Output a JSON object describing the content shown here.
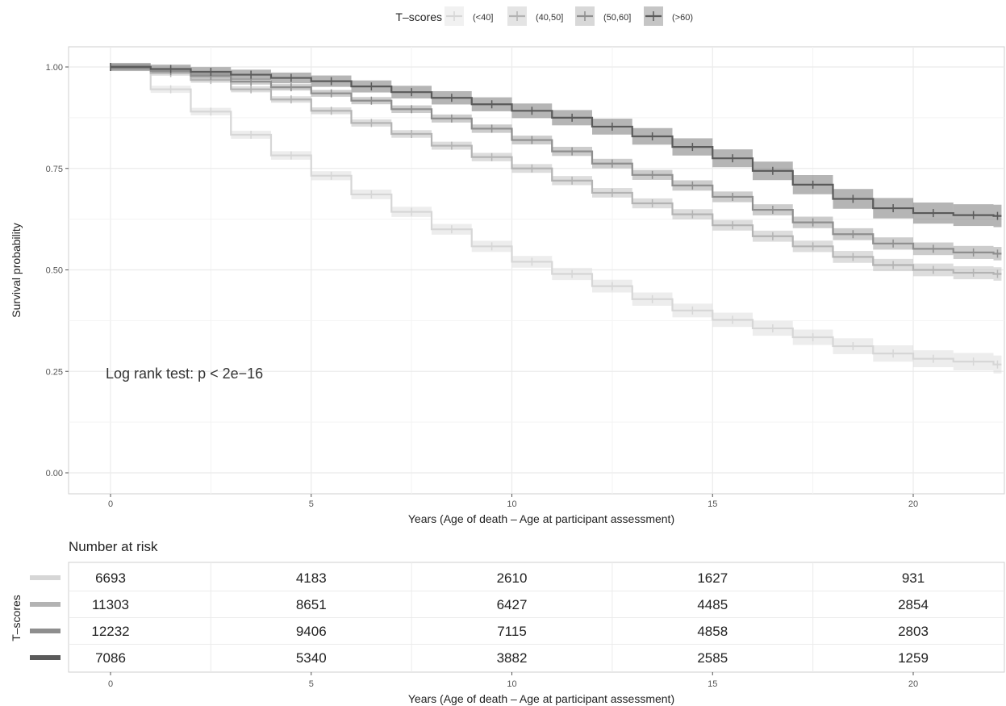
{
  "chart_data": [
    {
      "type": "line",
      "subtype": "kaplan-meier step survival curves with confidence bands and censor marks",
      "title": "",
      "xlabel": "Years (Age of death – Age at participant assessment)",
      "ylabel": "Survival probability",
      "xlim": [
        -1,
        22.3
      ],
      "ylim": [
        -0.05,
        1.05
      ],
      "xticks": [
        0,
        5,
        10,
        15,
        20
      ],
      "yticks": [
        0,
        0.25,
        0.5,
        0.75,
        1.0
      ],
      "ytick_labels": [
        "0.00",
        "0.25",
        "0.50",
        "0.75",
        "1.00"
      ],
      "grid": true,
      "legend_title": "T–scores",
      "legend_position": "top",
      "annotation": "Log rank test: p < 2e−16",
      "series": [
        {
          "name": "(<40]",
          "color": "#d6d6d6",
          "x": [
            0,
            1,
            2,
            3,
            4,
            5,
            6,
            7,
            8,
            9,
            10,
            11,
            12,
            13,
            14,
            15,
            16,
            17,
            18,
            19,
            20,
            21,
            22
          ],
          "values": [
            1.0,
            0.945,
            0.89,
            0.833,
            0.782,
            0.732,
            0.686,
            0.643,
            0.6,
            0.558,
            0.52,
            0.49,
            0.46,
            0.428,
            0.4,
            0.377,
            0.356,
            0.334,
            0.312,
            0.294,
            0.281,
            0.274,
            0.267
          ],
          "band": 0.008
        },
        {
          "name": "(40,50]",
          "color": "#b3b3b3",
          "x": [
            0,
            1,
            2,
            3,
            4,
            5,
            6,
            7,
            8,
            9,
            10,
            11,
            12,
            13,
            14,
            15,
            16,
            17,
            18,
            19,
            20,
            21,
            22
          ],
          "values": [
            1.0,
            0.985,
            0.968,
            0.945,
            0.92,
            0.892,
            0.862,
            0.835,
            0.806,
            0.778,
            0.75,
            0.72,
            0.69,
            0.664,
            0.637,
            0.61,
            0.583,
            0.558,
            0.532,
            0.512,
            0.5,
            0.493,
            0.49
          ],
          "band": 0.006
        },
        {
          "name": "(50,60]",
          "color": "#8e8e8e",
          "x": [
            0,
            1,
            2,
            3,
            4,
            5,
            6,
            7,
            8,
            9,
            10,
            11,
            12,
            13,
            14,
            15,
            16,
            17,
            18,
            19,
            20,
            21,
            22
          ],
          "values": [
            1.0,
            0.99,
            0.978,
            0.964,
            0.95,
            0.935,
            0.917,
            0.896,
            0.873,
            0.848,
            0.82,
            0.792,
            0.762,
            0.734,
            0.708,
            0.68,
            0.648,
            0.617,
            0.588,
            0.565,
            0.552,
            0.543,
            0.54
          ],
          "band": 0.006
        },
        {
          "name": "(>60]",
          "color": "#5a5a5a",
          "x": [
            0,
            1,
            2,
            3,
            4,
            5,
            6,
            7,
            8,
            9,
            10,
            11,
            12,
            13,
            14,
            15,
            16,
            17,
            18,
            19,
            20,
            21,
            22
          ],
          "values": [
            1.0,
            0.995,
            0.988,
            0.981,
            0.973,
            0.965,
            0.952,
            0.938,
            0.924,
            0.908,
            0.892,
            0.875,
            0.853,
            0.829,
            0.803,
            0.775,
            0.744,
            0.71,
            0.675,
            0.652,
            0.64,
            0.635,
            0.633
          ],
          "band": 0.01
        }
      ]
    },
    {
      "type": "table",
      "title": "Number at risk",
      "xlabel": "Years (Age of death – Age at participant assessment)",
      "ylabel": "T–scores",
      "x": [
        0,
        5,
        10,
        15,
        20
      ],
      "rows": [
        {
          "name": "(<40]",
          "color": "#d6d6d6",
          "values": [
            "6693",
            "4183",
            "2610",
            "1627",
            "931"
          ]
        },
        {
          "name": "(40,50]",
          "color": "#b3b3b3",
          "values": [
            "11303",
            "8651",
            "6427",
            "4485",
            "2854"
          ]
        },
        {
          "name": "(50,60]",
          "color": "#8e8e8e",
          "values": [
            "12232",
            "9406",
            "7115",
            "4858",
            "2803"
          ]
        },
        {
          "name": "(>60]",
          "color": "#5a5a5a",
          "values": [
            "7086",
            "5340",
            "3882",
            "2585",
            "1259"
          ]
        }
      ]
    }
  ]
}
